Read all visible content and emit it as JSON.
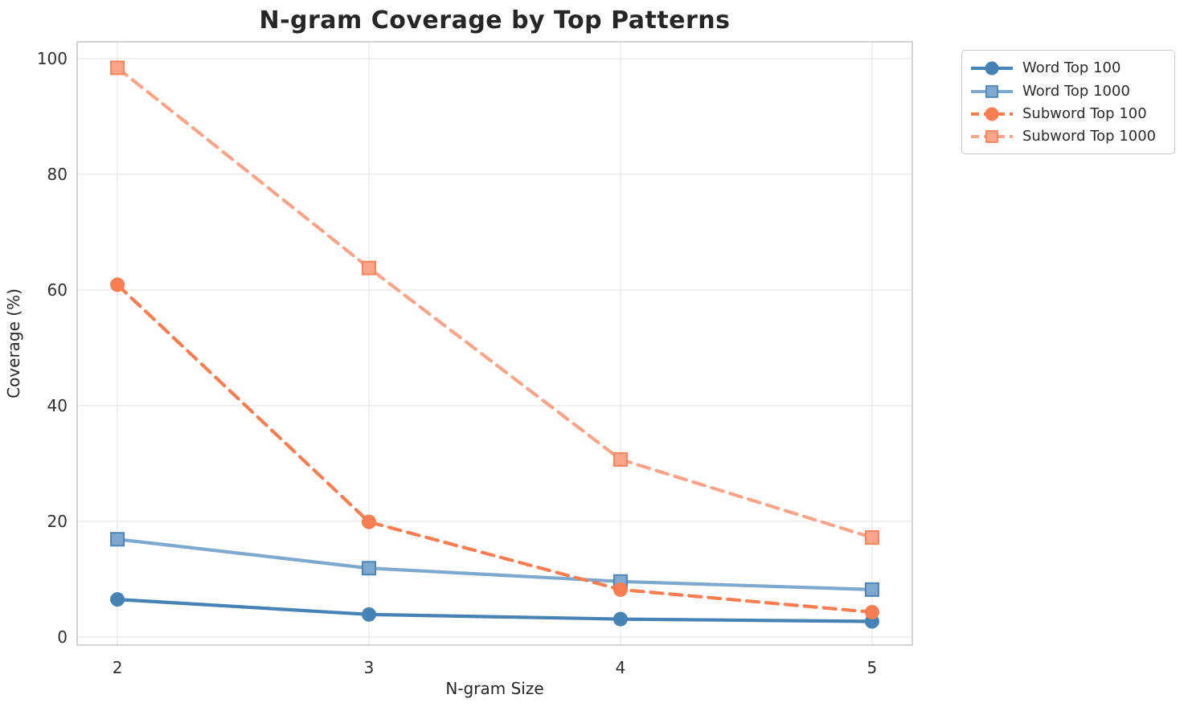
{
  "figure": {
    "title": "N-gram Coverage by Top Patterns"
  },
  "chart_data": {
    "type": "line",
    "title": "N-gram Coverage by Top Patterns",
    "xlabel": "N-gram Size",
    "ylabel": "Coverage (%)",
    "x": [
      2,
      3,
      4,
      5
    ],
    "xticks": [
      2,
      3,
      4,
      5
    ],
    "yticks": [
      0,
      20,
      40,
      60,
      80,
      100
    ],
    "xlim": [
      1.84,
      5.16
    ],
    "ylim": [
      -1.4,
      102.9
    ],
    "grid": true,
    "legend_position": "outside-top-right",
    "series": [
      {
        "name": "Word Top 100",
        "values": [
          6.5,
          3.9,
          3.1,
          2.7
        ],
        "color": "#4682b4",
        "marker": "circle",
        "marker_edge": "#4682b4",
        "linestyle": "solid"
      },
      {
        "name": "Word Top 1000",
        "values": [
          16.9,
          11.9,
          9.6,
          8.2
        ],
        "color": "#7fa8cf",
        "marker": "square",
        "marker_edge": "#4d86b8",
        "linestyle": "solid"
      },
      {
        "name": "Subword Top 100",
        "values": [
          60.9,
          19.9,
          8.2,
          4.3
        ],
        "color": "#f97d51",
        "marker": "circle",
        "marker_edge": "#f97d51",
        "linestyle": "dashed"
      },
      {
        "name": "Subword Top 1000",
        "values": [
          98.4,
          63.8,
          30.7,
          17.2
        ],
        "color": "#fca489",
        "marker": "square",
        "marker_edge": "#f9835b",
        "linestyle": "dashed"
      }
    ],
    "style": {
      "grid_color": "#e7e7e7",
      "spine_color": "#c9c9c9",
      "tick_color": "#2e2e2e",
      "title_color": "#262626"
    }
  }
}
